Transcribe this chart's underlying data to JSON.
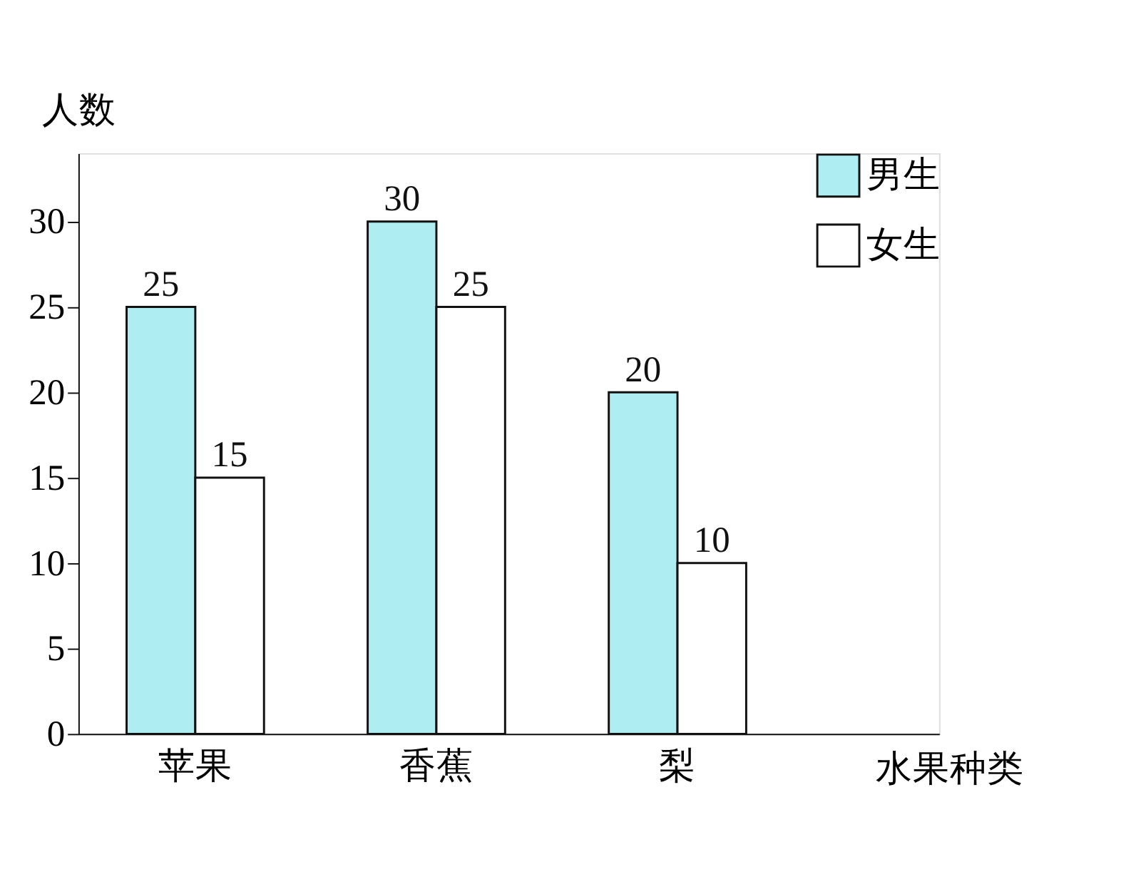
{
  "chart_data": {
    "type": "bar",
    "xlabel": "水果种类",
    "ylabel": "人数",
    "categories": [
      "苹果",
      "香蕉",
      "梨"
    ],
    "series": [
      {
        "name": "男生",
        "color": "#aeeef3",
        "values": [
          25,
          30,
          20
        ]
      },
      {
        "name": "女生",
        "color": "#ffffff",
        "values": [
          15,
          25,
          10
        ]
      }
    ],
    "ylim": [
      0,
      34
    ],
    "yticks": [
      0,
      5,
      10,
      15,
      20,
      25,
      30
    ],
    "grid": false,
    "legend": "top right",
    "data_labels": true
  }
}
